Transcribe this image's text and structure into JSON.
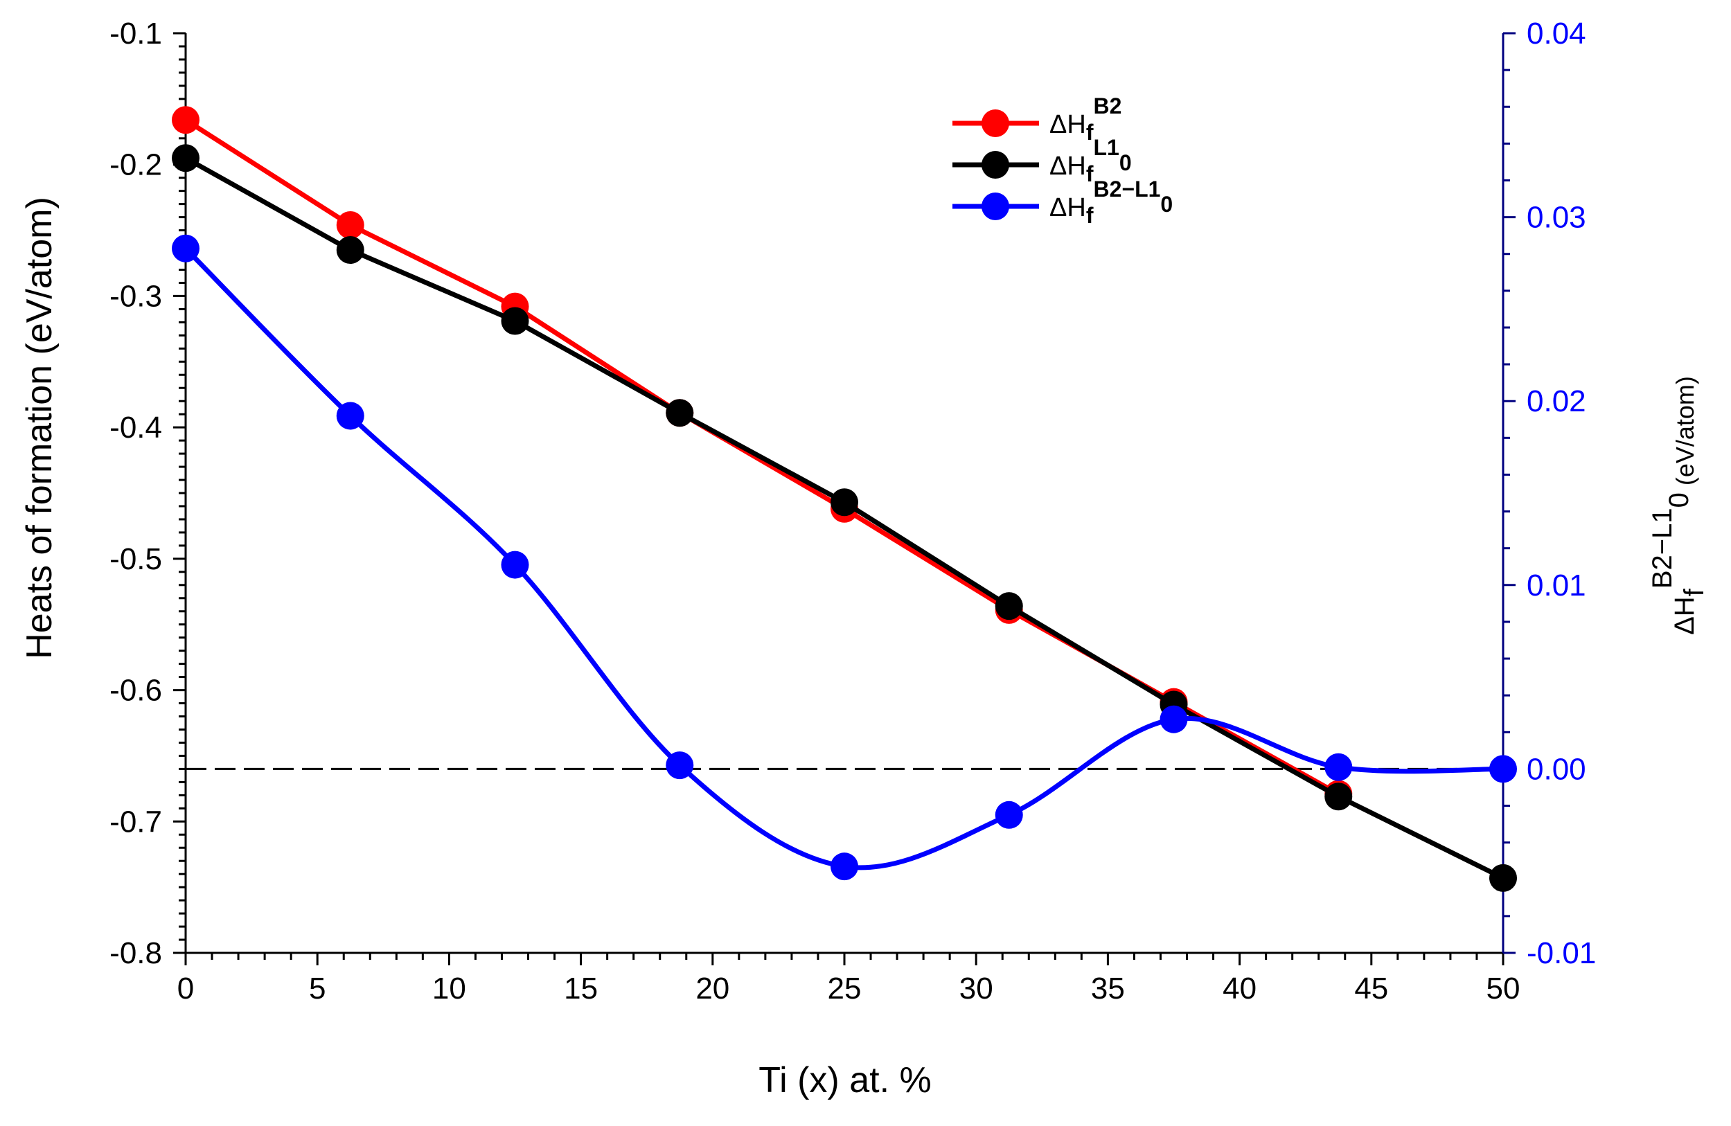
{
  "chart_data": {
    "type": "line",
    "title": "",
    "xlabel": "Ti (x) at. %",
    "ylabel": "Heats of formation (eV/atom)",
    "y2label": {
      "prefix": "ΔH",
      "sub": "f",
      "sup": "B2−L1",
      "sup_sub": "0",
      "units": "(eV/atom)"
    },
    "xlim": [
      0,
      50
    ],
    "ylim": [
      -0.8,
      -0.1
    ],
    "y2lim": [
      -0.01,
      0.04
    ],
    "x_ticks": [
      0,
      5,
      10,
      15,
      20,
      25,
      30,
      35,
      40,
      45,
      50
    ],
    "x_tick_labels": [
      "0",
      "5",
      "10",
      "15",
      "20",
      "25",
      "30",
      "35",
      "40",
      "45",
      "50"
    ],
    "y_ticks": [
      -0.8,
      -0.7,
      -0.6,
      -0.5,
      -0.4,
      -0.3,
      -0.2,
      -0.1
    ],
    "y_tick_labels": [
      "-0.8",
      "-0.7",
      "-0.6",
      "-0.5",
      "-0.4",
      "-0.3",
      "-0.2",
      "-0.1"
    ],
    "y2_ticks": [
      -0.01,
      0.0,
      0.01,
      0.02,
      0.03,
      0.04
    ],
    "y2_tick_labels": [
      "-0.01",
      "0.00",
      "0.01",
      "0.02",
      "0.03",
      "0.04"
    ],
    "x": [
      0,
      6.25,
      12.5,
      18.75,
      25,
      31.25,
      37.5,
      43.75,
      50
    ],
    "series": [
      {
        "name": "B2",
        "legend": {
          "prefix": "ΔH",
          "sub": "f",
          "sup": "B2",
          "sup_sub": ""
        },
        "axis": "left",
        "color": "#ff0000",
        "curve": "linear",
        "x": [
          0,
          6.25,
          12.5,
          18.75,
          25,
          31.25,
          37.5,
          43.75
        ],
        "values": [
          -0.166,
          -0.246,
          -0.308,
          -0.389,
          -0.462,
          -0.539,
          -0.609,
          -0.679
        ]
      },
      {
        "name": "L10",
        "legend": {
          "prefix": "ΔH",
          "sub": "f",
          "sup": "L1",
          "sup_sub": "0"
        },
        "axis": "left",
        "color": "#000000",
        "curve": "linear",
        "x": [
          0,
          6.25,
          12.5,
          18.75,
          25,
          31.25,
          37.5,
          43.75,
          50
        ],
        "values": [
          -0.195,
          -0.265,
          -0.319,
          -0.389,
          -0.457,
          -0.536,
          -0.611,
          -0.681,
          -0.743
        ]
      },
      {
        "name": "B2-L10",
        "legend": {
          "prefix": "ΔH",
          "sub": "f",
          "sup": "B2−L1",
          "sup_sub": "0"
        },
        "axis": "right",
        "color": "#0000ff",
        "curve": "smooth",
        "x": [
          0,
          6.25,
          12.5,
          18.75,
          25,
          31.25,
          37.5,
          43.75,
          50
        ],
        "values": [
          0.0283,
          0.0192,
          0.0111,
          0.0002,
          -0.0053,
          -0.0025,
          0.0027,
          0.0001,
          0.0
        ]
      }
    ],
    "reference_line": {
      "axis": "right",
      "value": 0.0,
      "style": "dashed",
      "color": "#000000"
    },
    "axis_colors": {
      "left": "#000000",
      "right": "#0000ff",
      "right_spine": "#000080"
    },
    "legend_position": "top-right",
    "grid": false
  }
}
